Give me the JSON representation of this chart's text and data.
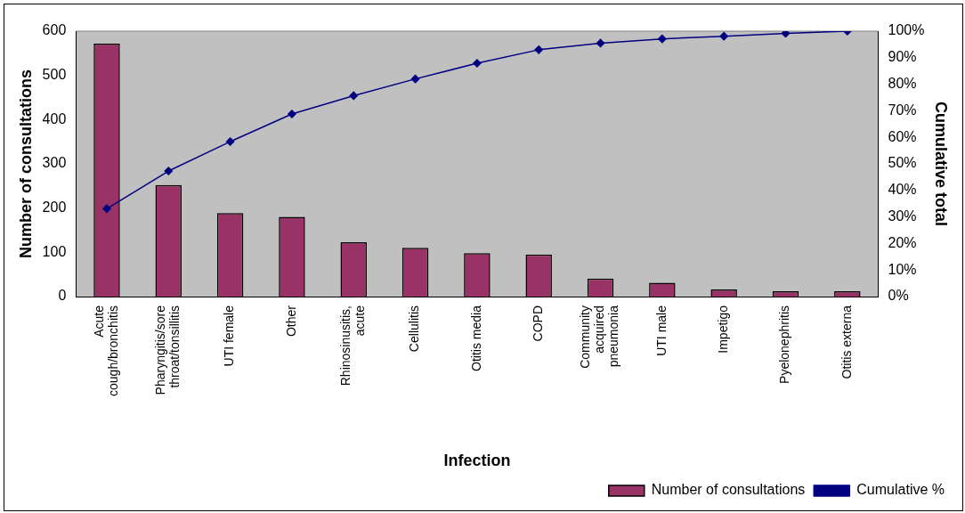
{
  "chart_data": {
    "type": "bar",
    "xlabel": "Infection",
    "ylabel": "Number of consultations",
    "y2label": "Cumulative total",
    "categories": [
      "Acute cough/bronchitis",
      "Pharyngitis/sore throat/tonsillitis",
      "UTI female",
      "Other",
      "Rhinosinusitis, acute",
      "Cellulitis",
      "Otitis media",
      "COPD",
      "Community acquired pneumonia",
      "UTI male",
      "Impetigo",
      "Pyelonephritis",
      "Otitis externa"
    ],
    "series": [
      {
        "name": "Number of consultations",
        "color": "#993366",
        "values": [
          572,
          252,
          189,
          180,
          123,
          110,
          98,
          95,
          41,
          31,
          16,
          12,
          12
        ]
      },
      {
        "name": "Cumulative %",
        "type": "line",
        "axis": "y2",
        "color": "#000080",
        "marker": "diamond",
        "values": [
          33.1,
          47.3,
          58.4,
          68.8,
          75.7,
          82.0,
          87.9,
          93.0,
          95.5,
          97.1,
          98.1,
          99.2,
          100
        ]
      }
    ],
    "ylim": [
      0,
      600
    ],
    "yticks": [
      0,
      100,
      200,
      300,
      400,
      500,
      600
    ],
    "y2lim": [
      0,
      100
    ],
    "y2ticks": [
      {
        "value": 0,
        "label": "0%"
      },
      {
        "value": 10,
        "label": "10%"
      },
      {
        "value": 20,
        "label": "20%"
      },
      {
        "value": 30,
        "label": "30%"
      },
      {
        "value": 40,
        "label": "40%"
      },
      {
        "value": 50,
        "label": "50%"
      },
      {
        "value": 60,
        "label": "60%"
      },
      {
        "value": 70,
        "label": "70%"
      },
      {
        "value": 80,
        "label": "80%"
      },
      {
        "value": 90,
        "label": "90%"
      },
      {
        "value": 100,
        "label": "100%"
      }
    ],
    "grid": false,
    "legend": "bottom right"
  }
}
